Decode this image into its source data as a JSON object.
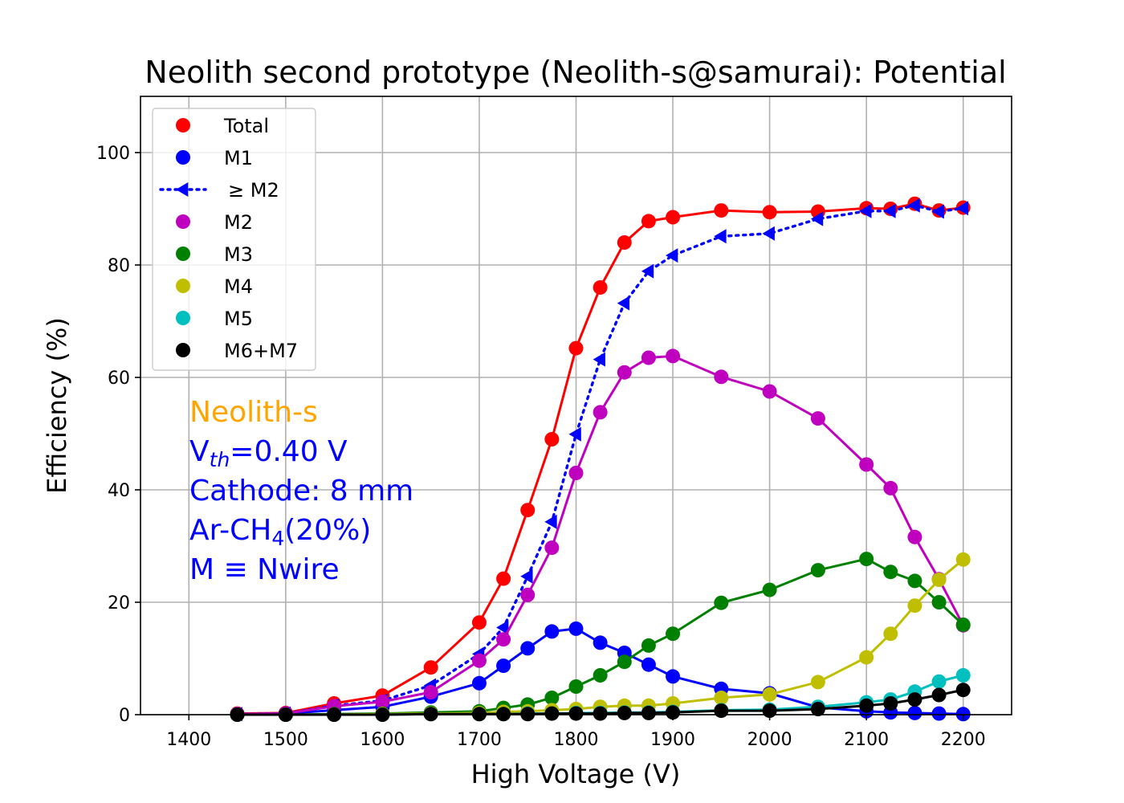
{
  "chart_data": {
    "type": "line",
    "title": "Neolith second prototype (Neolith-s@samurai): Potential",
    "xlabel": "High Voltage (V)",
    "ylabel": "Efficiency (%)",
    "xlim": [
      1350,
      2250
    ],
    "ylim": [
      0,
      110
    ],
    "xticks": [
      1400,
      1500,
      1600,
      1700,
      1800,
      1900,
      2000,
      2100,
      2200
    ],
    "yticks": [
      0,
      20,
      40,
      60,
      80,
      100
    ],
    "grid": true,
    "legend_position": "upper-left",
    "x": [
      1450,
      1500,
      1550,
      1600,
      1650,
      1700,
      1725,
      1750,
      1775,
      1800,
      1825,
      1850,
      1875,
      1900,
      1950,
      2000,
      2050,
      2100,
      2125,
      2150,
      2175,
      2200
    ],
    "series": [
      {
        "name": "Total",
        "color": "#ff0000",
        "marker": "circle",
        "linestyle": "solid",
        "values": [
          0.2,
          0.3,
          2.0,
          3.4,
          8.4,
          16.4,
          24.2,
          36.4,
          49.0,
          65.2,
          76.0,
          84.0,
          87.8,
          88.5,
          89.7,
          89.4,
          89.5,
          90.1,
          90.0,
          90.9,
          89.7,
          90.2
        ]
      },
      {
        "name": "M1",
        "color": "#0000ff",
        "marker": "circle",
        "linestyle": "solid",
        "values": [
          0.1,
          0.2,
          0.8,
          1.4,
          3.2,
          5.6,
          8.7,
          11.8,
          14.8,
          15.3,
          12.8,
          11.0,
          8.9,
          6.8,
          4.6,
          3.8,
          1.3,
          0.6,
          0.4,
          0.3,
          0.2,
          0.1
        ]
      },
      {
        "name": "≥ M2",
        "color": "#0000ff",
        "marker": "triangle-left",
        "linestyle": "dotted",
        "values": [
          0.1,
          0.2,
          1.6,
          2.5,
          5.2,
          10.8,
          15.5,
          24.6,
          34.3,
          49.9,
          63.2,
          73.2,
          78.9,
          81.7,
          85.1,
          85.6,
          88.2,
          89.6,
          89.6,
          90.6,
          89.5,
          90.1
        ]
      },
      {
        "name": "M2",
        "color": "#bf00bf",
        "marker": "circle",
        "linestyle": "solid",
        "values": [
          0.1,
          0.2,
          1.5,
          2.3,
          4.0,
          9.6,
          13.4,
          21.3,
          29.7,
          43.0,
          53.8,
          60.9,
          63.5,
          63.8,
          60.1,
          57.5,
          52.7,
          44.5,
          40.3,
          31.6,
          24.1,
          15.9
        ]
      },
      {
        "name": "M3",
        "color": "#008000",
        "marker": "circle",
        "linestyle": "solid",
        "values": [
          0.0,
          0.0,
          0.1,
          0.2,
          0.4,
          0.6,
          1.2,
          1.8,
          3.0,
          5.0,
          7.0,
          9.4,
          12.3,
          14.4,
          19.9,
          22.2,
          25.7,
          27.7,
          25.4,
          23.8,
          20.0,
          16.0
        ]
      },
      {
        "name": "M4",
        "color": "#bfbf00",
        "marker": "circle",
        "linestyle": "solid",
        "values": [
          0.0,
          0.0,
          0.0,
          0.1,
          0.2,
          0.3,
          0.5,
          0.6,
          0.8,
          1.0,
          1.4,
          1.6,
          1.6,
          2.0,
          3.0,
          3.6,
          5.8,
          10.2,
          14.4,
          19.4,
          24.0,
          27.6
        ]
      },
      {
        "name": "M5",
        "color": "#00bfbf",
        "marker": "circle",
        "linestyle": "solid",
        "values": [
          0.0,
          0.0,
          0.0,
          0.0,
          0.1,
          0.1,
          0.1,
          0.2,
          0.2,
          0.3,
          0.3,
          0.4,
          0.4,
          0.5,
          0.8,
          0.9,
          1.4,
          2.2,
          2.7,
          4.1,
          5.9,
          7.0
        ]
      },
      {
        "name": "M6+M7",
        "color": "#000000",
        "marker": "circle",
        "linestyle": "solid",
        "values": [
          0.0,
          0.0,
          0.0,
          0.0,
          0.1,
          0.1,
          0.1,
          0.1,
          0.2,
          0.2,
          0.2,
          0.3,
          0.3,
          0.4,
          0.7,
          0.7,
          1.0,
          1.6,
          2.0,
          2.7,
          3.5,
          4.4
        ]
      }
    ],
    "annotations": {
      "detector": {
        "text": "Neolith-s",
        "color": "#ffa500"
      },
      "threshold": {
        "prefix": "V",
        "subscript": "th",
        "suffix": "=0.40 V",
        "color": "#0000ff"
      },
      "cathode": {
        "text": "Cathode: 8 mm",
        "color": "#0000ff"
      },
      "gas": {
        "prefix": "Ar-CH",
        "subscript": "4",
        "suffix": "(20%)",
        "color": "#0000ff"
      },
      "definition": {
        "text": "M ≡ Nwire",
        "color": "#0000ff"
      }
    }
  }
}
